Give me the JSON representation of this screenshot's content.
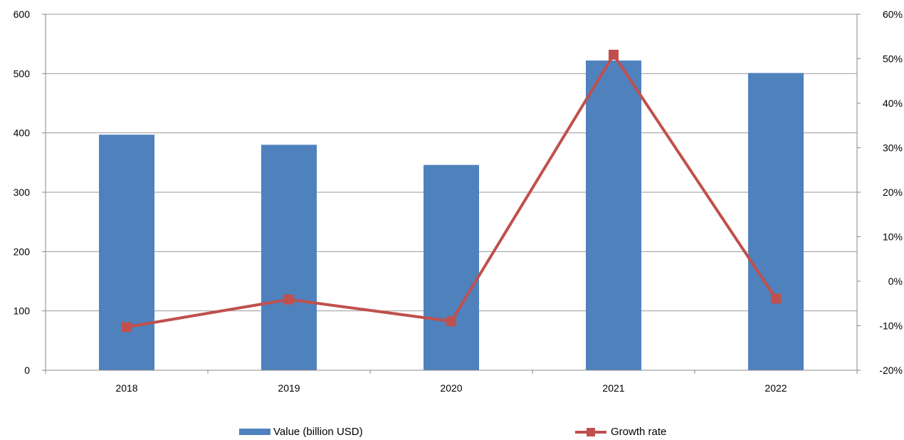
{
  "chart_data": {
    "type": "bar",
    "categories": [
      "2018",
      "2019",
      "2020",
      "2021",
      "2022"
    ],
    "series": [
      {
        "name": "Value (billion USD)",
        "type": "bar",
        "axis": "left",
        "color": "#4f81bd",
        "values": [
          397,
          380,
          346,
          522,
          501
        ]
      },
      {
        "name": "Growth rate",
        "type": "line",
        "axis": "right",
        "color": "#c0504d",
        "marker": "square",
        "values": [
          -10.3,
          -4.1,
          -9.0,
          50.9,
          -3.9
        ]
      }
    ],
    "left_axis": {
      "ylim": [
        0,
        600
      ],
      "ticks": [
        "0",
        "100",
        "200",
        "300",
        "400",
        "500",
        "600"
      ]
    },
    "right_axis": {
      "ylim": [
        -20,
        60
      ],
      "ticks": [
        "-20%",
        "-10%",
        "0%",
        "10%",
        "20%",
        "30%",
        "40%",
        "50%",
        "60%"
      ]
    },
    "grid": true,
    "legend_position": "bottom",
    "title": "",
    "xlabel": "",
    "ylabel": ""
  }
}
